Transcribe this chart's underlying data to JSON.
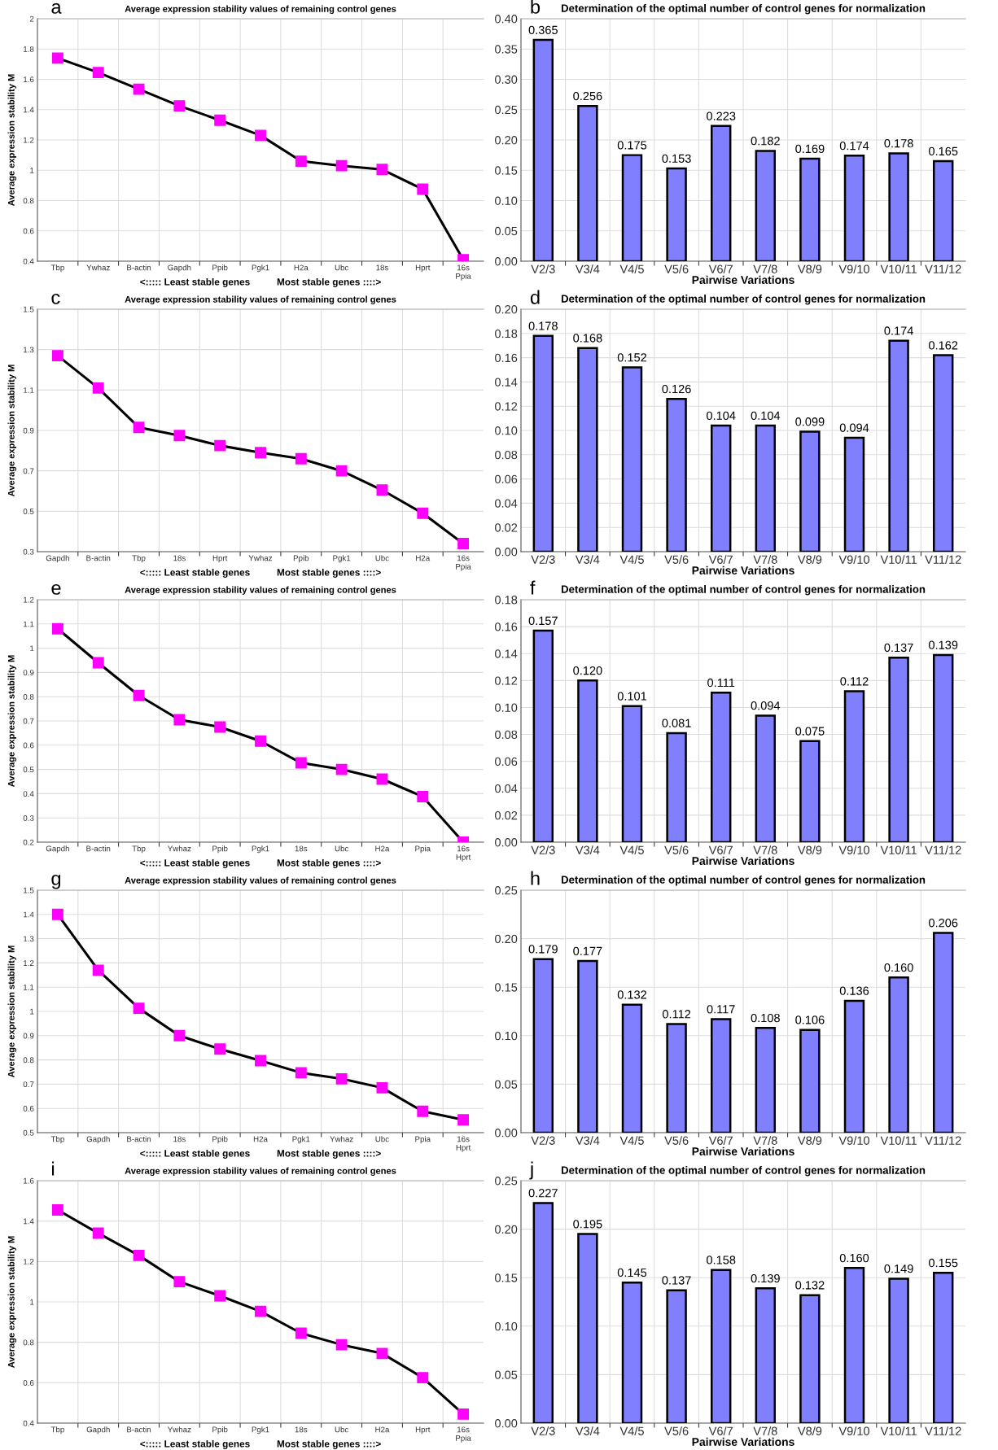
{
  "chart_data": [
    {
      "type": "line",
      "title": "Average expression stability values of remaining control genes",
      "annotations": [
        "a"
      ],
      "xlabel": "<::::: Least stable genes          Most stable genes ::::>",
      "ylabel": "Average expression stability M",
      "categories": [
        "Tbp",
        "Ywhaz",
        "B-actin",
        "Gapdh",
        "Ppib",
        "Pgk1",
        "H2a",
        "Ubc",
        "18s",
        "Hprt",
        "16s\nPpia"
      ],
      "marker": "square",
      "grid": true,
      "ylim": [
        0.4,
        2
      ],
      "yticks": [
        0.4,
        0.6,
        0.8,
        1,
        1.2,
        1.4,
        1.6,
        1.8,
        2
      ],
      "series": [
        {
          "color": "#ff00ff",
          "values": [
            1.74,
            1.645,
            1.535,
            1.425,
            1.33,
            1.23,
            1.06,
            1.03,
            1.005,
            0.875,
            0.41
          ]
        }
      ]
    },
    {
      "type": "bar",
      "title": "Determination of the optimal number of control genes for normalization",
      "annotations": [
        "b"
      ],
      "xlabel": "Pairwise Variations",
      "categories": [
        "V2/3",
        "V3/4",
        "V4/5",
        "V5/6",
        "V6/7",
        "V7/8",
        "V8/9",
        "V9/10",
        "V10/11",
        "V11/12"
      ],
      "grid": true,
      "ylim": [
        0,
        0.4
      ],
      "yticks": [
        {
          "value": 0,
          "label": "0.00"
        },
        {
          "value": 0.05,
          "label": "0.05"
        },
        {
          "value": 0.1,
          "label": "0.10"
        },
        {
          "value": 0.15,
          "label": "0.15"
        },
        {
          "value": 0.2,
          "label": "0.20"
        },
        {
          "value": 0.25,
          "label": "0.25"
        },
        {
          "value": 0.3,
          "label": "0.30"
        },
        {
          "value": 0.35,
          "label": "0.35"
        },
        {
          "value": 0.4,
          "label": "0.40"
        }
      ],
      "series": [
        {
          "color": "#8080ff",
          "values": [
            0.365,
            0.256,
            0.175,
            0.153,
            0.223,
            0.182,
            0.169,
            0.174,
            0.178,
            0.165
          ],
          "value_labels": [
            "0.365",
            "0.256",
            "0.175",
            "0.153",
            "0.223",
            "0.182",
            "0.169",
            "0.174",
            "0.178",
            "0.165"
          ]
        }
      ]
    },
    {
      "type": "line",
      "title": "Average expression stability values of remaining control genes",
      "annotations": [
        "c"
      ],
      "xlabel": "<::::: Least stable genes          Most stable genes ::::>",
      "ylabel": "Average expression stability M",
      "categories": [
        "Gapdh",
        "B-actin",
        "Tbp",
        "18s",
        "Hprt",
        "Ywhaz",
        "Ppib",
        "Pgk1",
        "Ubc",
        "H2a",
        "16s\nPpia"
      ],
      "marker": "square",
      "grid": true,
      "ylim": [
        0.3,
        1.5
      ],
      "yticks": [
        0.3,
        0.5,
        0.7,
        0.9,
        1.1,
        1.3,
        1.5
      ],
      "series": [
        {
          "color": "#ff00ff",
          "values": [
            1.27,
            1.11,
            0.915,
            0.875,
            0.825,
            0.79,
            0.76,
            0.7,
            0.605,
            0.49,
            0.34
          ]
        }
      ]
    },
    {
      "type": "bar",
      "title": "Determination of the optimal number of control genes for normalization",
      "annotations": [
        "d"
      ],
      "xlabel": "Pairwise Variations",
      "categories": [
        "V2/3",
        "V3/4",
        "V4/5",
        "V5/6",
        "V6/7",
        "V7/8",
        "V8/9",
        "V9/10",
        "V10/11",
        "V11/12"
      ],
      "grid": true,
      "ylim": [
        0,
        0.2
      ],
      "yticks": [
        {
          "value": 0,
          "label": "0.00"
        },
        {
          "value": 0.02,
          "label": "0.02"
        },
        {
          "value": 0.04,
          "label": "0.04"
        },
        {
          "value": 0.06,
          "label": "0.06"
        },
        {
          "value": 0.08,
          "label": "0.08"
        },
        {
          "value": 0.1,
          "label": "0.10"
        },
        {
          "value": 0.12,
          "label": "0.12"
        },
        {
          "value": 0.14,
          "label": "0.14"
        },
        {
          "value": 0.16,
          "label": "0.16"
        },
        {
          "value": 0.18,
          "label": "0.18"
        },
        {
          "value": 0.2,
          "label": "0.20"
        }
      ],
      "series": [
        {
          "color": "#8080ff",
          "values": [
            0.178,
            0.168,
            0.152,
            0.126,
            0.104,
            0.104,
            0.099,
            0.094,
            0.174,
            0.162
          ],
          "value_labels": [
            "0.178",
            "0.168",
            "0.152",
            "0.126",
            "0.104",
            "0.104",
            "0.099",
            "0.094",
            "0.174",
            "0.162"
          ]
        }
      ]
    },
    {
      "type": "line",
      "title": "Average expression stability values of remaining control genes",
      "annotations": [
        "e"
      ],
      "xlabel": "<::::: Least stable genes          Most stable genes ::::>",
      "ylabel": "Average expression stability M",
      "categories": [
        "Gapdh",
        "B-actin",
        "Tbp",
        "Ywhaz",
        "Ppib",
        "Pgk1",
        "18s",
        "Ubc",
        "H2a",
        "Ppia",
        "16s\nHprt"
      ],
      "marker": "square",
      "grid": true,
      "ylim": [
        0.2,
        1.2
      ],
      "yticks": [
        0.2,
        0.3,
        0.4,
        0.5,
        0.6,
        0.7,
        0.8,
        0.9,
        1,
        1.1,
        1.2
      ],
      "series": [
        {
          "color": "#ff00ff",
          "values": [
            1.08,
            0.94,
            0.805,
            0.705,
            0.675,
            0.617,
            0.527,
            0.5,
            0.46,
            0.388,
            0.2
          ]
        }
      ]
    },
    {
      "type": "bar",
      "title": "Determination of the optimal number of control genes for normalization",
      "annotations": [
        "f"
      ],
      "xlabel": "Pairwise Variations",
      "categories": [
        "V2/3",
        "V3/4",
        "V4/5",
        "V5/6",
        "V6/7",
        "V7/8",
        "V8/9",
        "V9/10",
        "V10/11",
        "V11/12"
      ],
      "grid": true,
      "ylim": [
        0,
        0.18
      ],
      "yticks": [
        {
          "value": 0,
          "label": "0.00"
        },
        {
          "value": 0.02,
          "label": "0.02"
        },
        {
          "value": 0.04,
          "label": "0.04"
        },
        {
          "value": 0.06,
          "label": "0.06"
        },
        {
          "value": 0.08,
          "label": "0.08"
        },
        {
          "value": 0.1,
          "label": "0.10"
        },
        {
          "value": 0.12,
          "label": "0.12"
        },
        {
          "value": 0.14,
          "label": "0.14"
        },
        {
          "value": 0.16,
          "label": "0.16"
        },
        {
          "value": 0.18,
          "label": "0.18"
        }
      ],
      "series": [
        {
          "color": "#8080ff",
          "values": [
            0.157,
            0.12,
            0.101,
            0.081,
            0.111,
            0.094,
            0.075,
            0.112,
            0.137,
            0.139
          ],
          "value_labels": [
            "0.157",
            "0.120",
            "0.101",
            "0.081",
            "0.111",
            "0.094",
            "0.075",
            "0.112",
            "0.137",
            "0.139"
          ]
        }
      ]
    },
    {
      "type": "line",
      "title": "Average expression stability values of remaining control genes",
      "annotations": [
        "g"
      ],
      "xlabel": "<::::: Least stable genes          Most stable genes ::::>",
      "ylabel": "Average expression stability M",
      "categories": [
        "Tbp",
        "Gapdh",
        "B-actin",
        "18s",
        "Ppib",
        "H2a",
        "Pgk1",
        "Ywhaz",
        "Ubc",
        "Ppia",
        "16s\nHprt"
      ],
      "marker": "square",
      "grid": true,
      "ylim": [
        0.5,
        1.5
      ],
      "yticks": [
        0.5,
        0.6,
        0.7,
        0.8,
        0.9,
        1,
        1.1,
        1.2,
        1.3,
        1.4,
        1.5
      ],
      "series": [
        {
          "color": "#ff00ff",
          "values": [
            1.4,
            1.17,
            1.013,
            0.9,
            0.845,
            0.797,
            0.747,
            0.722,
            0.685,
            0.588,
            0.553
          ]
        }
      ]
    },
    {
      "type": "bar",
      "title": "Determination of the optimal number of control genes for normalization",
      "annotations": [
        "h"
      ],
      "xlabel": "Pairwise Variations",
      "categories": [
        "V2/3",
        "V3/4",
        "V4/5",
        "V5/6",
        "V6/7",
        "V7/8",
        "V8/9",
        "V9/10",
        "V10/11",
        "V11/12"
      ],
      "grid": true,
      "ylim": [
        0,
        0.25
      ],
      "yticks": [
        {
          "value": 0,
          "label": "0.00"
        },
        {
          "value": 0.05,
          "label": "0.05"
        },
        {
          "value": 0.1,
          "label": "0.10"
        },
        {
          "value": 0.15,
          "label": "0.15"
        },
        {
          "value": 0.2,
          "label": "0.20"
        },
        {
          "value": 0.25,
          "label": "0.25"
        }
      ],
      "series": [
        {
          "color": "#8080ff",
          "values": [
            0.179,
            0.177,
            0.132,
            0.112,
            0.117,
            0.108,
            0.106,
            0.136,
            0.16,
            0.206
          ],
          "value_labels": [
            "0.179",
            "0.177",
            "0.132",
            "0.112",
            "0.117",
            "0.108",
            "0.106",
            "0.136",
            "0.160",
            "0.206"
          ]
        }
      ]
    },
    {
      "type": "line",
      "title": "Average expression stability values of remaining control genes",
      "annotations": [
        "i"
      ],
      "xlabel": "<::::: Least stable genes          Most stable genes ::::>",
      "ylabel": "Average expression stability M",
      "categories": [
        "Tbp",
        "Gapdh",
        "B-actin",
        "Ywhaz",
        "Ppib",
        "Pgk1",
        "18s",
        "Ubc",
        "H2a",
        "Hprt",
        "16s\nPpia"
      ],
      "marker": "square",
      "grid": true,
      "ylim": [
        0.4,
        1.6
      ],
      "yticks": [
        0.4,
        0.6,
        0.8,
        1,
        1.2,
        1.4,
        1.6
      ],
      "series": [
        {
          "color": "#ff00ff",
          "values": [
            1.455,
            1.34,
            1.23,
            1.1,
            1.03,
            0.953,
            0.845,
            0.788,
            0.745,
            0.625,
            0.445
          ]
        }
      ]
    },
    {
      "type": "bar",
      "title": "Determination of the optimal number of control genes for normalization",
      "annotations": [
        "j"
      ],
      "xlabel": "Pairwise Variations",
      "categories": [
        "V2/3",
        "V3/4",
        "V4/5",
        "V5/6",
        "V6/7",
        "V7/8",
        "V8/9",
        "V9/10",
        "V10/11",
        "V11/12"
      ],
      "grid": true,
      "ylim": [
        0,
        0.25
      ],
      "yticks": [
        {
          "value": 0,
          "label": "0.00"
        },
        {
          "value": 0.05,
          "label": "0.05"
        },
        {
          "value": 0.1,
          "label": "0.10"
        },
        {
          "value": 0.15,
          "label": "0.15"
        },
        {
          "value": 0.2,
          "label": "0.20"
        },
        {
          "value": 0.25,
          "label": "0.25"
        }
      ],
      "series": [
        {
          "color": "#8080ff",
          "values": [
            0.227,
            0.195,
            0.145,
            0.137,
            0.158,
            0.139,
            0.132,
            0.16,
            0.149,
            0.155
          ],
          "value_labels": [
            "0.227",
            "0.195",
            "0.145",
            "0.137",
            "0.158",
            "0.139",
            "0.132",
            "0.160",
            "0.149",
            "0.155"
          ]
        }
      ]
    }
  ]
}
